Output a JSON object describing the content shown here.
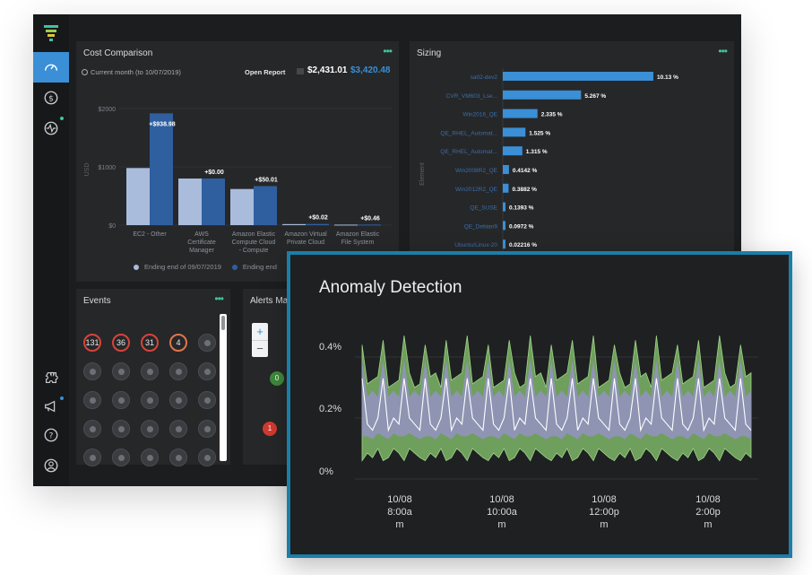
{
  "sidebar": {
    "items": [
      {
        "icon": "dashboard-gauge-icon",
        "active": true
      },
      {
        "icon": "dollar-icon",
        "active": false
      },
      {
        "icon": "activity-pulse-icon",
        "active": false
      },
      {
        "icon": "integrations-icon",
        "active": false
      },
      {
        "icon": "megaphone-icon",
        "active": false
      },
      {
        "icon": "help-icon",
        "active": false
      },
      {
        "icon": "user-profile-icon",
        "active": false
      }
    ],
    "accent": "#3a8fd6"
  },
  "cost": {
    "title": "Cost Comparison",
    "period": "Current month (to 10/07/2019)",
    "open_report": "Open Report",
    "total_a": "$2,431.01",
    "total_b": "$3,420.48",
    "more": "•••",
    "legend_a": "Ending end of 09/07/2019",
    "legend_b": "Ending end"
  },
  "cost_chart": {
    "type": "bar",
    "ylabel": "USD",
    "yticks": [
      "$2000",
      "$1000",
      "$0"
    ],
    "categories": [
      "EC2 - Other",
      "AWS Certificate Manager",
      "Amazon Elastic Compute Cloud - Compute",
      "Amazon Virtual Private Cloud",
      "Amazon Elastic File System"
    ],
    "series": [
      {
        "values": [
          980,
          800,
          620,
          18,
          9
        ],
        "color": "#a9bcdc"
      },
      {
        "values": [
          1918,
          800,
          670,
          20,
          10
        ],
        "color": "#2f5f9f"
      }
    ],
    "delta_labels": [
      "+$938.98",
      "+$0.00",
      "+$50.01",
      "+$0.02",
      "+$0.46"
    ],
    "ylim": [
      0,
      2000
    ]
  },
  "sizing": {
    "title": "Sizing",
    "more": "•••",
    "ylabel": "Element",
    "labels": [
      "sa02-dev2",
      "CVR_VM603_Lse...",
      "Win2016_QE",
      "QE_RHEL_Automat...",
      "QE_RHEL_Automat...",
      "Win2008R2_QE",
      "Win2012R2_QE",
      "QE_SUSE",
      "QE_Debian9",
      "Ubuntu/Linux-20"
    ],
    "values": [
      10.13,
      5.267,
      2.335,
      1.525,
      1.315,
      0.4142,
      0.3882,
      0.1393,
      0.0972,
      0.02216
    ],
    "value_labels": [
      "10.13 %",
      "5.267 %",
      "2.335 %",
      "1.525 %",
      "1.315 %",
      "0.4142 %",
      "0.3882 %",
      "0.1393 %",
      "0.0972 %",
      "0.02216 %"
    ]
  },
  "events": {
    "title": "Events",
    "more": "•••",
    "counts": [
      {
        "value": "131",
        "severity": "red"
      },
      {
        "value": "36",
        "severity": "red"
      },
      {
        "value": "31",
        "severity": "red"
      },
      {
        "value": "4",
        "severity": "orange"
      }
    ]
  },
  "alerts": {
    "title": "Alerts Ma",
    "zoom_in": "+",
    "zoom_out": "−",
    "markers": [
      {
        "value": "0",
        "color": "#3f8a3a"
      },
      {
        "value": "1",
        "color": "#d23a30"
      }
    ]
  },
  "anomaly": {
    "title": "Anomaly Detection",
    "y_ticks": [
      "0.4%",
      "0.2%",
      "0%"
    ],
    "x_ticks": [
      {
        "line1": "10/08",
        "line2": "8:00a",
        "line3": "m"
      },
      {
        "line1": "10/08",
        "line2": "10:00a",
        "line3": "m"
      },
      {
        "line1": "10/08",
        "line2": "12:00p",
        "line3": "m"
      },
      {
        "line1": "10/08",
        "line2": "2:00p",
        "line3": "m"
      }
    ]
  },
  "chart_data": {
    "type": "area",
    "title": "Anomaly Detection",
    "xlabel": "",
    "ylabel": "",
    "ylim": [
      0,
      0.5
    ],
    "x_ticks": [
      "10/08 8:00am",
      "10/08 10:00am",
      "10/08 12:00pm",
      "10/08 2:00pm"
    ],
    "series": [
      {
        "role": "outer band",
        "color": "#6f9f5c"
      },
      {
        "role": "inner band",
        "color": "#8f93b6"
      },
      {
        "role": "value line",
        "color": "#ffffff"
      }
    ],
    "value_range_approx": [
      0.1,
      0.48
    ]
  }
}
